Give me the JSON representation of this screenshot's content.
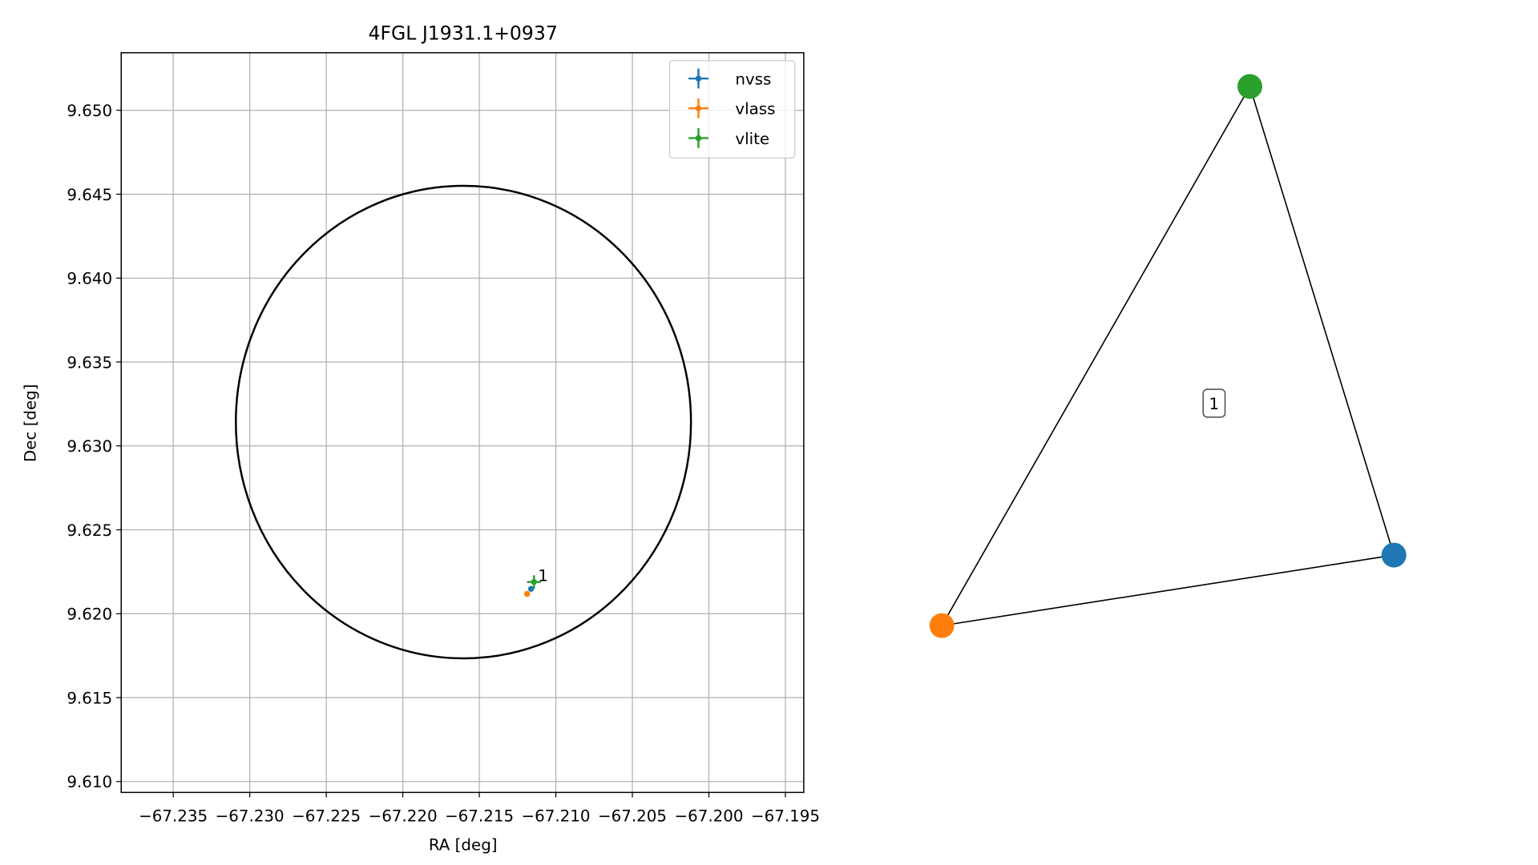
{
  "chart_data": [
    {
      "type": "scatter",
      "title": "4FGL J1931.1+0937",
      "x_label": "RA [deg]",
      "y_label": "Dec [deg]",
      "xlim": [
        -67.2384,
        -67.1938
      ],
      "ylim": [
        9.60935,
        9.65343
      ],
      "xticks": [
        {
          "value": -67.235,
          "label": "−67.235"
        },
        {
          "value": -67.23,
          "label": "−67.230"
        },
        {
          "value": -67.225,
          "label": "−67.225"
        },
        {
          "value": -67.22,
          "label": "−67.220"
        },
        {
          "value": -67.215,
          "label": "−67.215"
        },
        {
          "value": -67.21,
          "label": "−67.210"
        },
        {
          "value": -67.205,
          "label": "−67.205"
        },
        {
          "value": -67.2,
          "label": "−67.200"
        },
        {
          "value": -67.195,
          "label": "−67.195"
        }
      ],
      "yticks": [
        {
          "value": 9.61,
          "label": "9.610"
        },
        9.615,
        {
          "value": 9.62,
          "label": "9.620"
        },
        9.625,
        {
          "value": 9.63,
          "label": "9.630"
        },
        9.635,
        {
          "value": 9.64,
          "label": "9.640"
        },
        9.645,
        {
          "value": 9.65,
          "label": "9.650"
        }
      ],
      "grid": true,
      "legend": "upper right",
      "ellipse": {
        "center_x": -67.21604,
        "center_y": 9.63142,
        "width": 0.02974,
        "height": 0.02816,
        "color": "#000000"
      },
      "series": [
        {
          "name": "nvss",
          "color": "#1f77b4",
          "x": [
            -67.21162
          ],
          "values": [
            9.62148
          ],
          "xerr": [
            5e-05
          ],
          "yerr": [
            5e-05
          ]
        },
        {
          "name": "vlass",
          "color": "#ff7f0e",
          "x": [
            -67.21188
          ],
          "values": [
            9.62118
          ],
          "xerr": [
            3e-05
          ],
          "yerr": [
            3e-05
          ]
        },
        {
          "name": "vlite",
          "color": "#2ca02c",
          "x": [
            -67.21143
          ],
          "values": [
            9.62189
          ],
          "xerr": [
            0.00045
          ],
          "yerr": [
            0.0004
          ]
        }
      ],
      "annotation": "1"
    },
    {
      "type": "network",
      "nodes": [
        {
          "color": "#1f77b4"
        },
        {
          "color": "#ff7f0e"
        },
        {
          "color": "#2ca02c"
        }
      ],
      "edges": [
        [
          0,
          1
        ],
        [
          1,
          2
        ],
        [
          2,
          0
        ]
      ],
      "label": "1"
    }
  ]
}
